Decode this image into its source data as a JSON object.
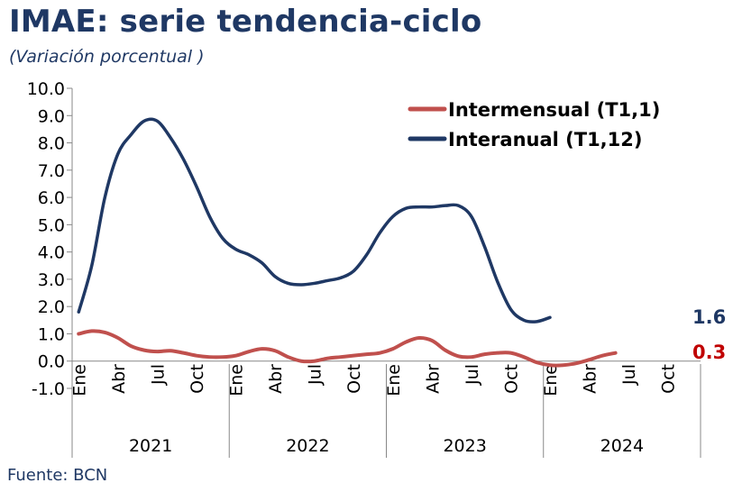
{
  "title": "IMAE: serie tendencia-ciclo",
  "subtitle": "(Variación porcentual )",
  "source": "Fuente:  BCN",
  "chart_data": {
    "type": "line",
    "ylim": [
      -1.0,
      10.0
    ],
    "yticks": [
      "10.0",
      "9.0",
      "8.0",
      "7.0",
      "6.0",
      "5.0",
      "4.0",
      "3.0",
      "2.0",
      "1.0",
      "0.0",
      "-1.0"
    ],
    "month_labels": [
      "Ene",
      "Abr",
      "Jul",
      "Oct",
      "Ene",
      "Abr",
      "Jul",
      "Oct",
      "Ene",
      "Abr",
      "Jul",
      "Oct",
      "Ene",
      "Abr",
      "Jul",
      "Oct"
    ],
    "years": [
      "2021",
      "2022",
      "2023",
      "2024"
    ],
    "x": [
      "2021-01",
      "2021-02",
      "2021-03",
      "2021-04",
      "2021-05",
      "2021-06",
      "2021-07",
      "2021-08",
      "2021-09",
      "2021-10",
      "2021-11",
      "2021-12",
      "2022-01",
      "2022-02",
      "2022-03",
      "2022-04",
      "2022-05",
      "2022-06",
      "2022-07",
      "2022-08",
      "2022-09",
      "2022-10",
      "2022-11",
      "2022-12",
      "2023-01",
      "2023-02",
      "2023-03",
      "2023-04",
      "2023-05",
      "2023-06",
      "2023-07",
      "2023-08",
      "2023-09",
      "2023-10",
      "2023-11",
      "2023-12",
      "2024-01",
      "2024-02",
      "2024-03",
      "2024-04",
      "2024-05",
      "2024-06",
      "2024-07",
      "2024-08",
      "2024-09",
      "2024-10",
      "2024-11",
      "2024-12"
    ],
    "series": [
      {
        "name": "Intermensual (T1,1)",
        "color": "#c0504d",
        "values": [
          1.0,
          1.1,
          1.05,
          0.85,
          0.55,
          0.4,
          0.35,
          0.38,
          0.3,
          0.2,
          0.15,
          0.15,
          0.2,
          0.35,
          0.45,
          0.38,
          0.15,
          0.0,
          0.0,
          0.1,
          0.15,
          0.2,
          0.25,
          0.3,
          0.45,
          0.7,
          0.85,
          0.75,
          0.4,
          0.18,
          0.15,
          0.25,
          0.3,
          0.3,
          0.15,
          -0.05,
          -0.15,
          -0.15,
          -0.08,
          0.05,
          0.2,
          0.3,
          null,
          null,
          null,
          null,
          null,
          null
        ],
        "end_label": "0.3"
      },
      {
        "name": "Interanual (T1,12)",
        "color": "#1f3864",
        "values": [
          1.8,
          3.5,
          6.0,
          7.6,
          8.3,
          8.8,
          8.8,
          8.2,
          7.4,
          6.4,
          5.3,
          4.5,
          4.1,
          3.9,
          3.6,
          3.1,
          2.85,
          2.8,
          2.85,
          2.95,
          3.05,
          3.3,
          3.9,
          4.7,
          5.3,
          5.6,
          5.65,
          5.65,
          5.7,
          5.7,
          5.3,
          4.2,
          2.9,
          1.9,
          1.5,
          1.45,
          1.6,
          null,
          null,
          null,
          null,
          null,
          null,
          null,
          null,
          null,
          null,
          null
        ],
        "end_label": "1.6"
      }
    ]
  }
}
